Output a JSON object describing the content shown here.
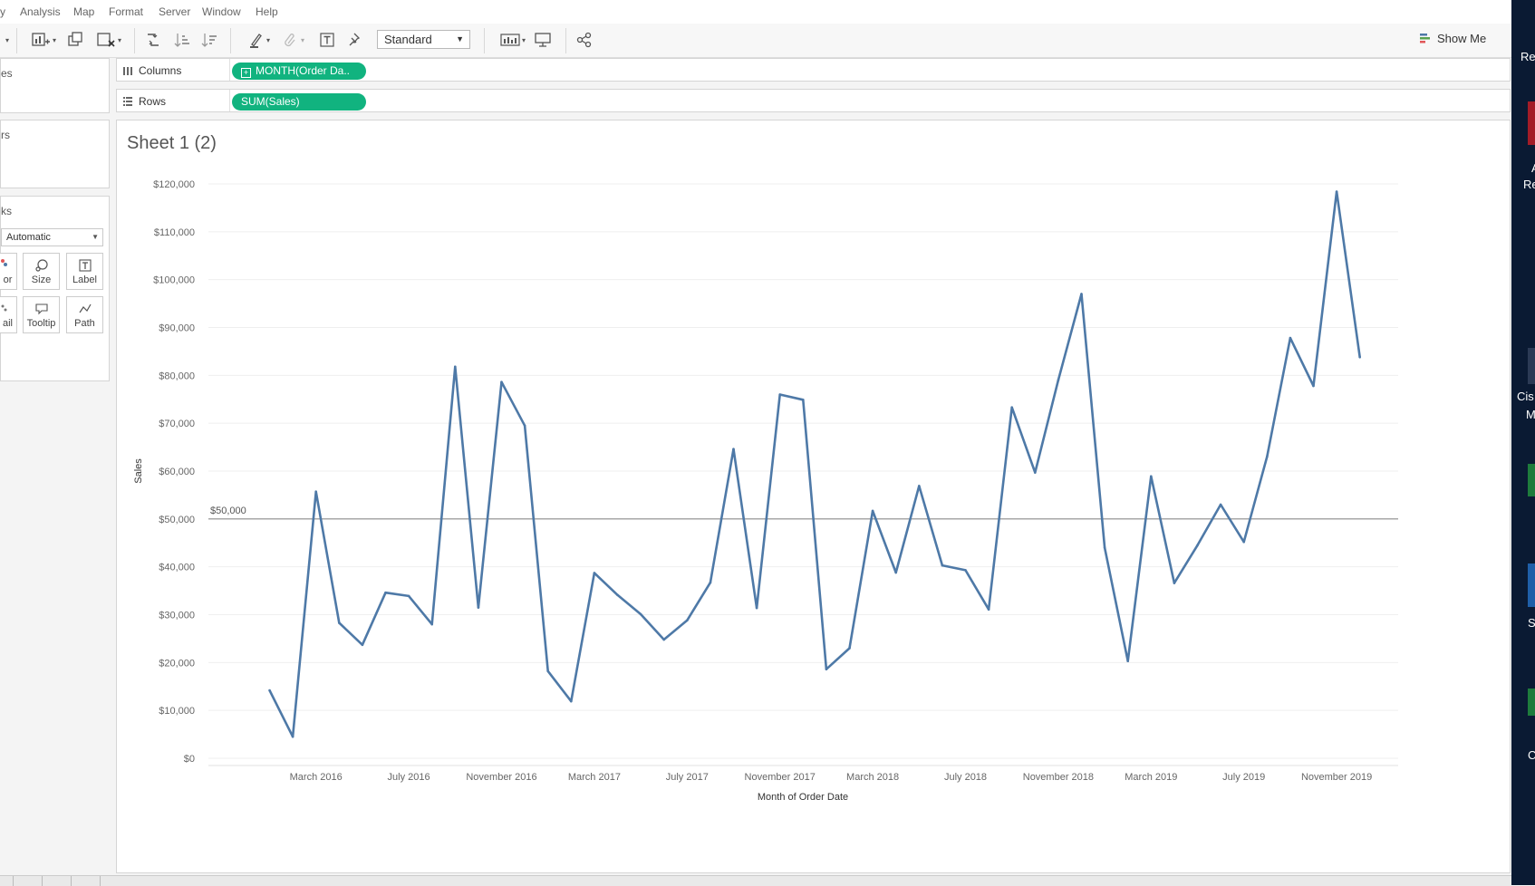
{
  "menu": {
    "items": [
      "y",
      "Analysis",
      "Map",
      "Format",
      "Server",
      "Window",
      "Help"
    ]
  },
  "toolbar": {
    "fit": "Standard",
    "show_me": "Show Me"
  },
  "left": {
    "pages_label": "es",
    "filters_label": "rs",
    "marks_label": "ks",
    "mark_type": "Automatic",
    "cards": {
      "color": "or",
      "size": "Size",
      "label": "Label",
      "detail": "ail",
      "tooltip": "Tooltip",
      "path": "Path"
    }
  },
  "shelves": {
    "columns_label": "Columns",
    "columns_pill": "MONTH(Order Da..",
    "rows_label": "Rows",
    "rows_pill": "SUM(Sales)"
  },
  "sheet": {
    "title": "Sheet 1 (2)"
  },
  "desktop": {
    "fragments": [
      "Re",
      "A",
      "Re",
      "Cis",
      "M",
      "S",
      "C"
    ]
  },
  "colors": {
    "line": "#4e79a7",
    "pill": "#11b37f",
    "ref_line": "#8c8c8c"
  },
  "chart_data": {
    "type": "line",
    "title": "Sheet 1 (2)",
    "xlabel": "Month of Order Date",
    "ylabel": "Sales",
    "ylim": [
      0,
      120000
    ],
    "y_ticks": [
      0,
      10000,
      20000,
      30000,
      40000,
      50000,
      60000,
      70000,
      80000,
      90000,
      100000,
      110000,
      120000
    ],
    "y_tick_labels": [
      "$0",
      "$10,000",
      "$20,000",
      "$30,000",
      "$40,000",
      "$50,000",
      "$60,000",
      "$70,000",
      "$80,000",
      "$90,000",
      "$100,000",
      "$110,000",
      "$120,000"
    ],
    "x_tick_labels": [
      "March 2016",
      "July 2016",
      "November 2016",
      "March 2017",
      "July 2017",
      "November 2017",
      "March 2018",
      "July 2018",
      "November 2018",
      "March 2019",
      "July 2019",
      "November 2019"
    ],
    "x_tick_months": [
      "2016-03",
      "2016-07",
      "2016-11",
      "2017-03",
      "2017-07",
      "2017-11",
      "2018-03",
      "2018-07",
      "2018-11",
      "2019-03",
      "2019-07",
      "2019-11"
    ],
    "reference_line": {
      "value": 50000,
      "label": "$50,000"
    },
    "grid": true,
    "series": [
      {
        "months": [
          "2016-01",
          "2016-02",
          "2016-03",
          "2016-04",
          "2016-05",
          "2016-06",
          "2016-07",
          "2016-08",
          "2016-09",
          "2016-10",
          "2016-11",
          "2016-12",
          "2017-01",
          "2017-02",
          "2017-03",
          "2017-04",
          "2017-05",
          "2017-06",
          "2017-07",
          "2017-08",
          "2017-09",
          "2017-10",
          "2017-11",
          "2017-12",
          "2018-01",
          "2018-02",
          "2018-03",
          "2018-04",
          "2018-05",
          "2018-06",
          "2018-07",
          "2018-08",
          "2018-09",
          "2018-10",
          "2018-11",
          "2018-12",
          "2019-01",
          "2019-02",
          "2019-03",
          "2019-04",
          "2019-05",
          "2019-06",
          "2019-07",
          "2019-08",
          "2019-09",
          "2019-10",
          "2019-11",
          "2019-12"
        ],
        "values": [
          14200,
          4500,
          55700,
          28300,
          23700,
          34600,
          33900,
          28000,
          81800,
          31500,
          78600,
          69500,
          18200,
          11900,
          38700,
          34100,
          30100,
          24800,
          28800,
          36700,
          64600,
          31400,
          76000,
          74900,
          18600,
          23000,
          51700,
          38800,
          56900,
          40300,
          39300,
          31100,
          73300,
          59700,
          79000,
          97000,
          44000,
          20300,
          58900,
          36600,
          44500,
          53000,
          45200,
          63000,
          87800,
          77800,
          118400,
          83800
        ]
      }
    ]
  }
}
